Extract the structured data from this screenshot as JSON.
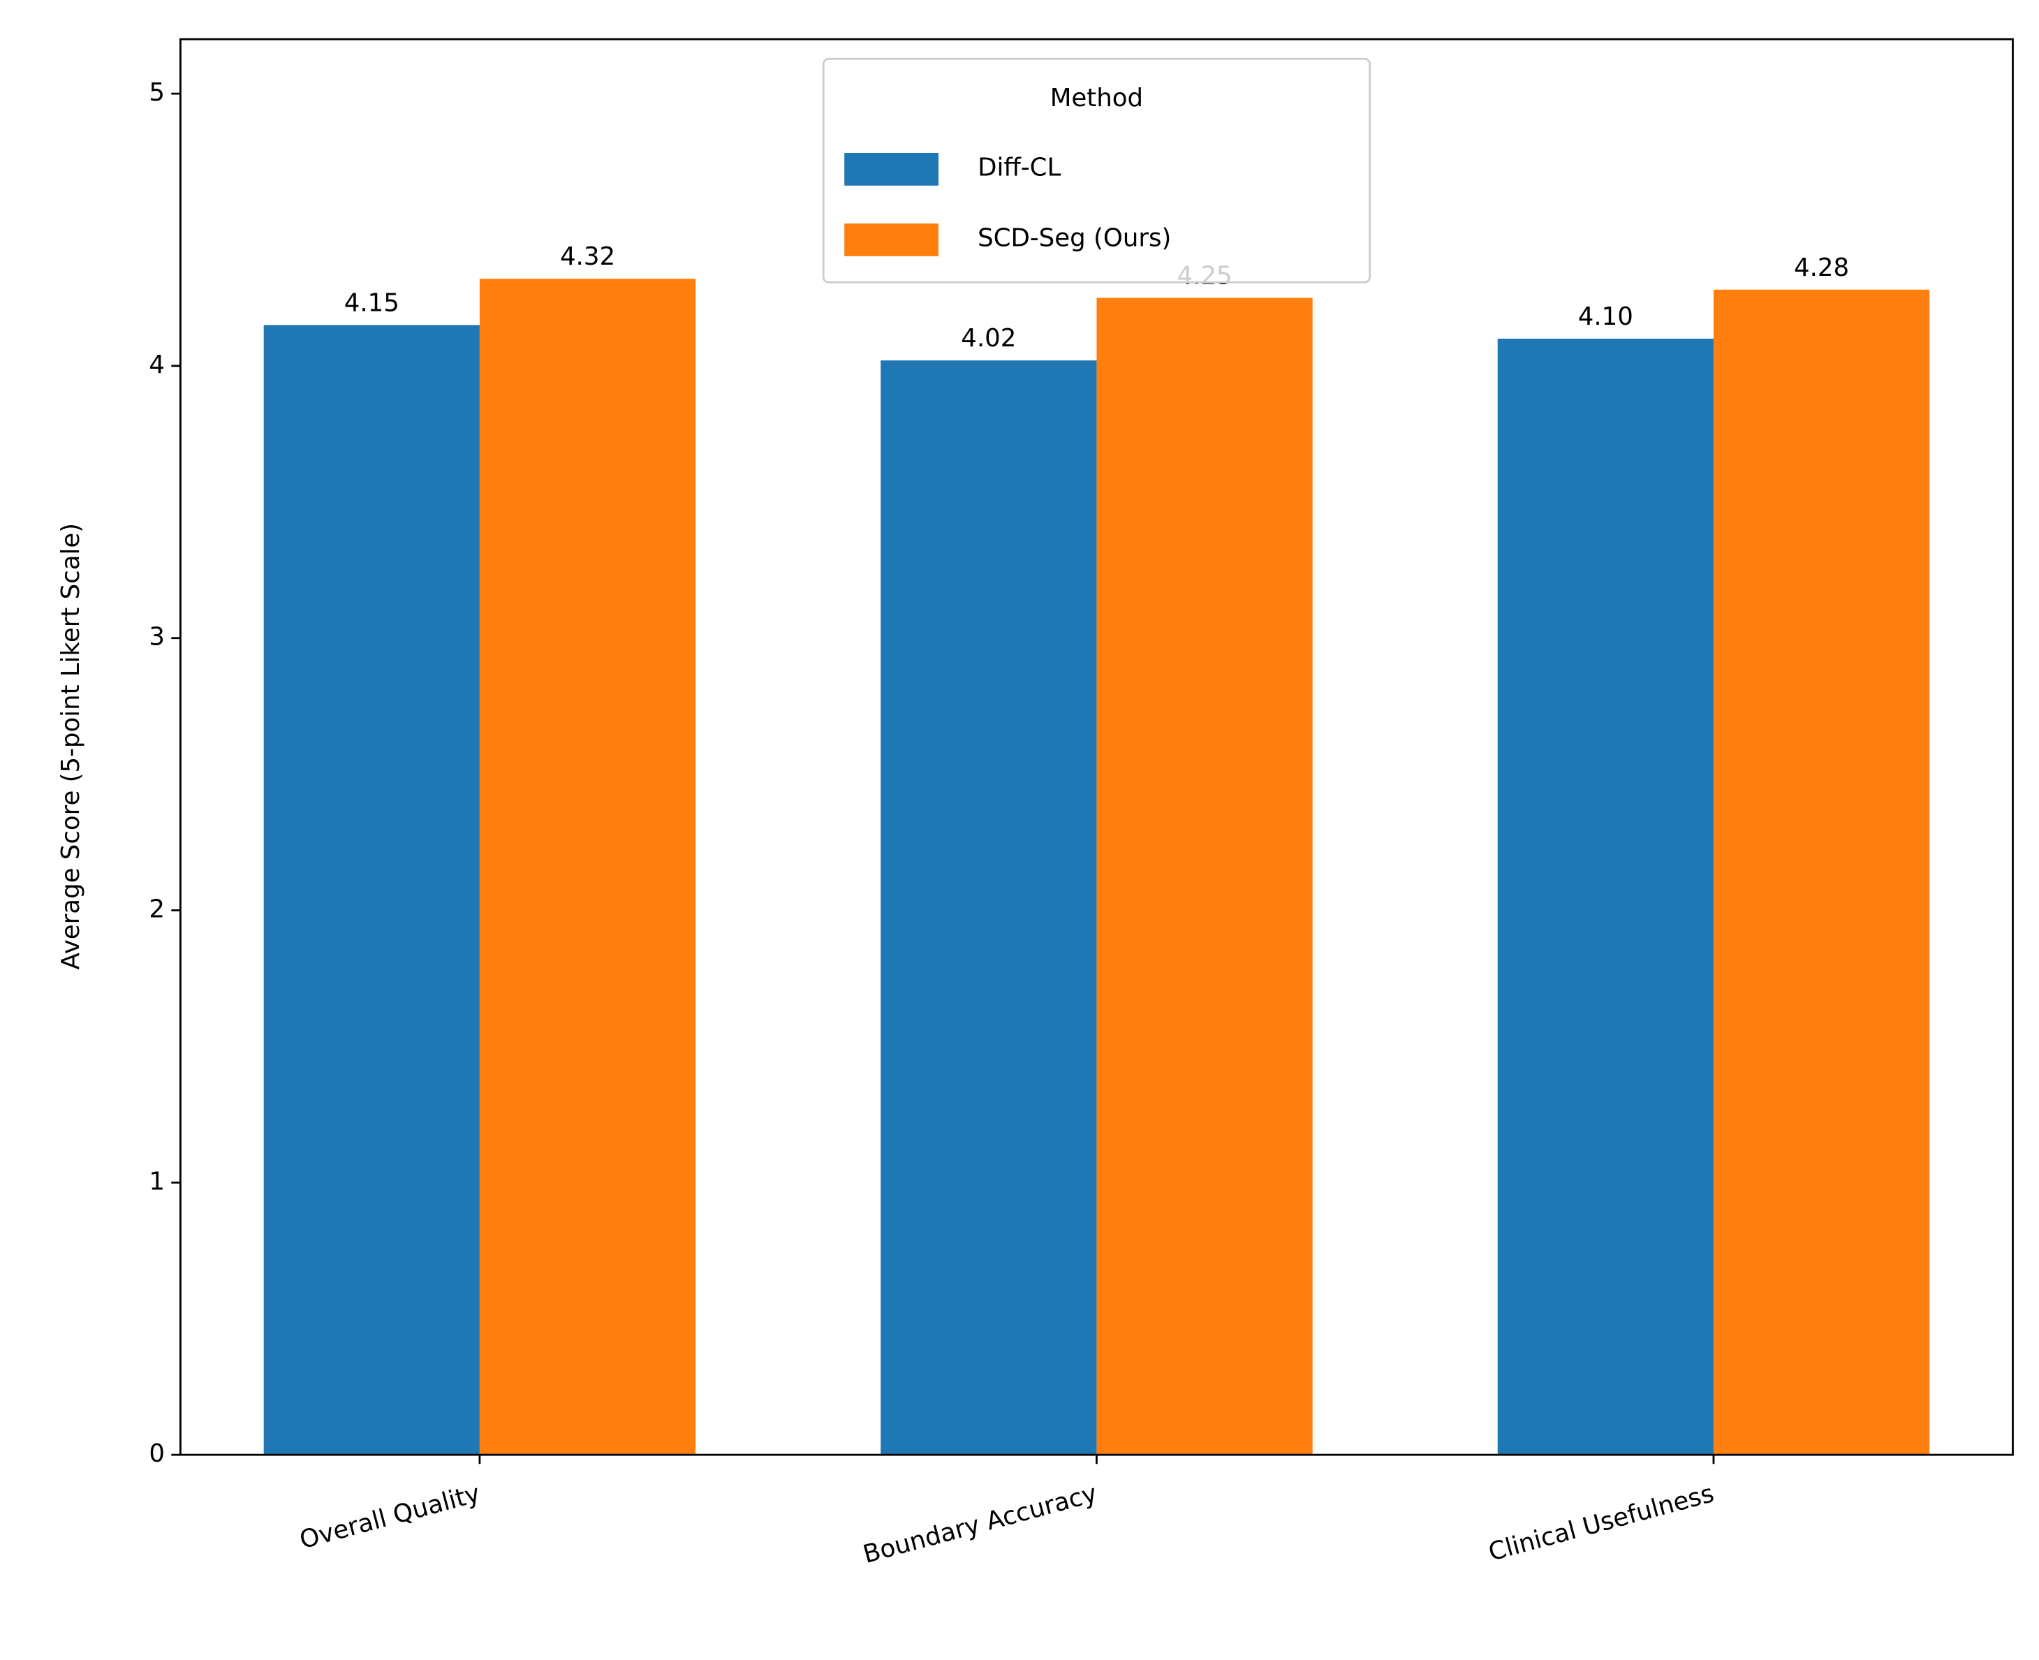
{
  "chart_data": {
    "type": "bar",
    "categories": [
      "Overall Quality",
      "Boundary Accuracy",
      "Clinical Usefulness"
    ],
    "series": [
      {
        "name": "Diff-CL",
        "color": "#1f77b4",
        "values": [
          4.15,
          4.02,
          4.1
        ],
        "value_labels": [
          "4.15",
          "4.02",
          "4.10"
        ]
      },
      {
        "name": "SCD-Seg (Ours)",
        "color": "#ff7f0e",
        "values": [
          4.32,
          4.25,
          4.28
        ],
        "value_labels": [
          "4.32",
          "4.25",
          "4.28"
        ]
      }
    ],
    "y_label": "Average Score (5-point Likert Scale)",
    "legend_title": "Method",
    "legend_position": "upper center",
    "ylim": [
      0,
      5.2
    ],
    "yticks": [
      0,
      1,
      2,
      3,
      4,
      5
    ],
    "grid": false
  }
}
